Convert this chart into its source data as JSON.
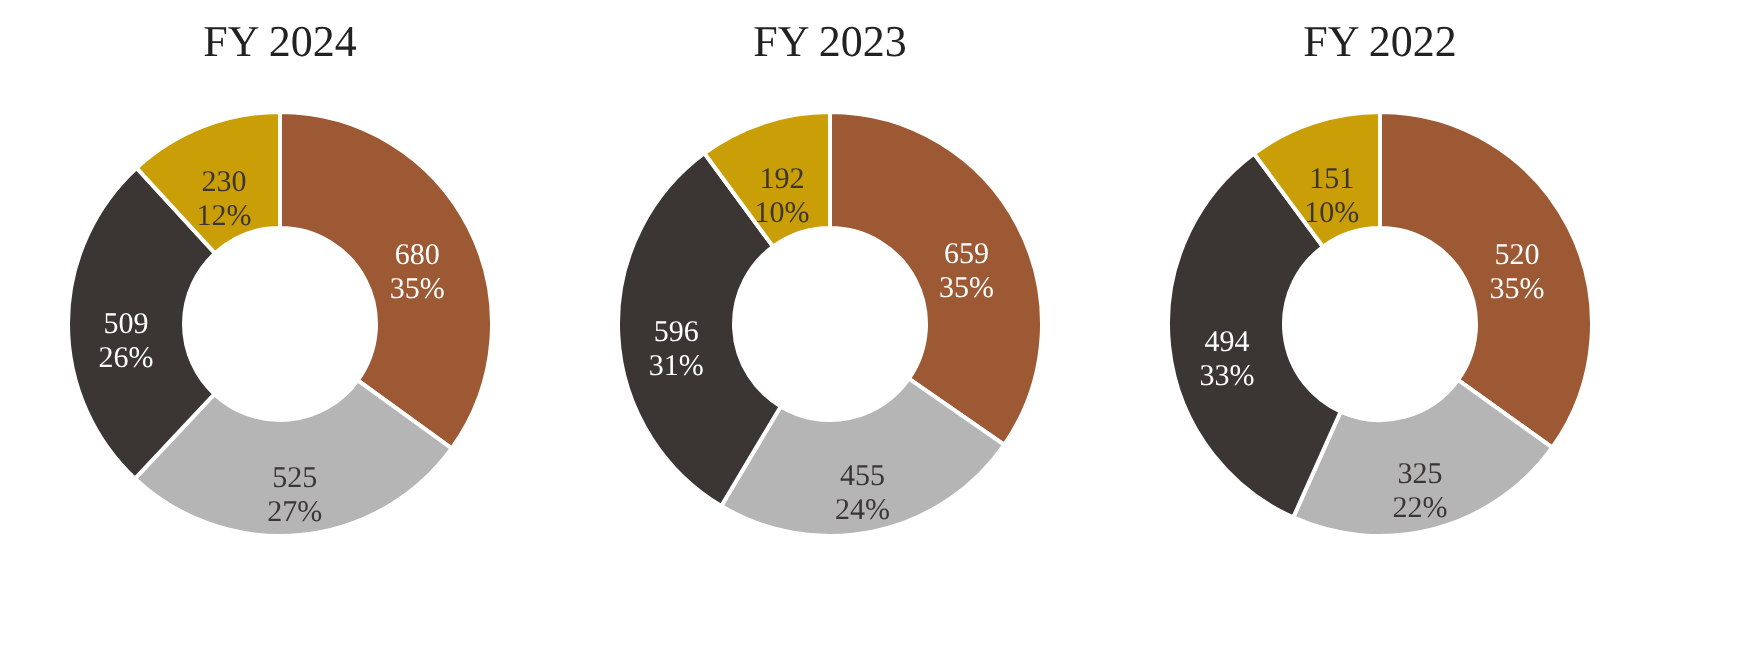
{
  "chart_data": [
    {
      "type": "donut",
      "title": "FY 2024",
      "categories": [
        null,
        null,
        null,
        null
      ],
      "values": [
        680,
        525,
        509,
        230
      ],
      "colors": [
        "#9c5934",
        "#b5b5b5",
        "#3b3634",
        "#c99e06"
      ],
      "value_labels": [
        "680\n35%",
        "525\n27%",
        "509\n26%",
        "230\n12%"
      ]
    },
    {
      "type": "donut",
      "title": "FY 2023",
      "categories": [
        null,
        null,
        null,
        null
      ],
      "values": [
        659,
        455,
        596,
        192
      ],
      "colors": [
        "#9c5934",
        "#b5b5b5",
        "#3b3634",
        "#c99e06"
      ],
      "value_labels": [
        "659\n35%",
        "455\n24%",
        "596\n31%",
        "192\n10%"
      ]
    },
    {
      "type": "donut",
      "title": "FY 2022",
      "categories": [
        null,
        null,
        null,
        null
      ],
      "values": [
        520,
        325,
        494,
        151
      ],
      "colors": [
        "#9c5934",
        "#b5b5b5",
        "#3b3634",
        "#c99e06"
      ],
      "value_labels": [
        "520\n35%",
        "325\n22%",
        "494\n33%",
        "151\n10%"
      ]
    }
  ]
}
